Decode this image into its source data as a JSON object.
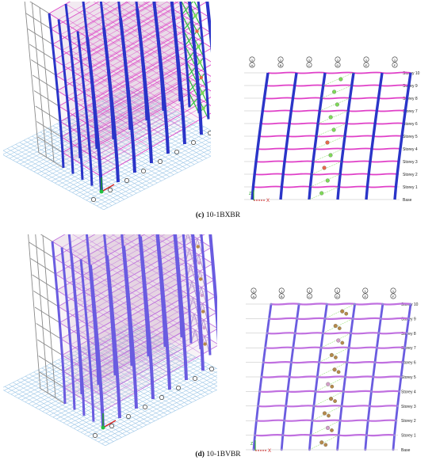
{
  "panels": [
    {
      "id": "c",
      "caption_letter": "(c)",
      "caption_text": "10-1BXBR",
      "brace_type": "X",
      "grid_labels": [
        [
          "1",
          "A"
        ],
        [
          "1",
          "B"
        ],
        [
          "1",
          "C"
        ],
        [
          "1",
          "D"
        ],
        [
          "1",
          "E"
        ],
        [
          "1",
          "F"
        ]
      ],
      "storey_labels": [
        "Storey 10",
        "Storey 9",
        "Storey 8",
        "Storey 7",
        "Storey 6",
        "Storey 5",
        "Storey 4",
        "Storey 3",
        "Storey 2",
        "Storey 1",
        "Base"
      ],
      "axis_labels": {
        "z": "Z",
        "x": "X"
      }
    },
    {
      "id": "d",
      "caption_letter": "(d)",
      "caption_text": "10-1BVBR",
      "brace_type": "V",
      "grid_labels": [
        [
          "1",
          "A"
        ],
        [
          "1",
          "B"
        ],
        [
          "1",
          "C"
        ],
        [
          "1",
          "D"
        ],
        [
          "1",
          "E"
        ],
        [
          "1",
          "F"
        ]
      ],
      "storey_labels": [
        "Storey 10",
        "Storey 9",
        "Storey 8",
        "Storey 7",
        "Storey 6",
        "Storey 5",
        "Storey 4",
        "Storey 3",
        "Storey 2",
        "Storey 1",
        "Base"
      ],
      "axis_labels": {
        "z": "Z",
        "x": "X"
      }
    }
  ],
  "colors": {
    "column": "#2a35c8",
    "column_d": "#6a5ce0",
    "beam": "#e040c8",
    "beam_d": "#c070e0",
    "brace": "#30c040",
    "hinge_green": "#7ed957",
    "hinge_red": "#e46a4a",
    "hinge_brown": "#b58a4a",
    "grid": "#9fc8e8",
    "frame": "#8a8a8a",
    "slab": "#c9a0c0"
  }
}
